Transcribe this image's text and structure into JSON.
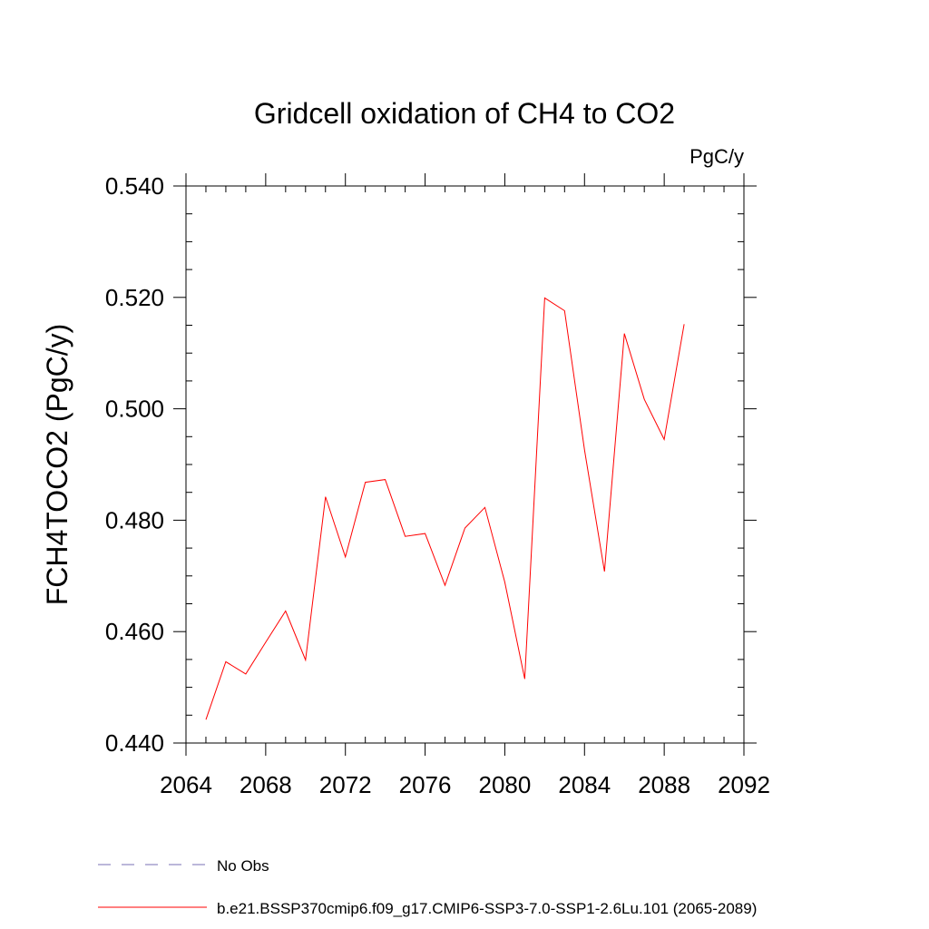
{
  "chart_data": {
    "type": "line",
    "title": "Gridcell oxidation of CH4 to CO2",
    "units_label": "PgC/y",
    "ylabel": "FCH4TOCO2  (PgC/y)",
    "xlabel": "",
    "xlim": [
      2064,
      2092
    ],
    "ylim": [
      0.44,
      0.54
    ],
    "x_ticks": [
      "2064",
      "2068",
      "2072",
      "2076",
      "2080",
      "2084",
      "2088",
      "2092"
    ],
    "y_ticks": [
      "0.440",
      "0.460",
      "0.480",
      "0.500",
      "0.520",
      "0.540"
    ],
    "series": [
      {
        "name": "b.e21.BSSP370cmip6.f09_g17.CMIP6-SSP3-7.0-SSP1-2.6Lu.101 (2065-2089)",
        "color": "#ff0000",
        "x": [
          2065,
          2066,
          2067,
          2068,
          2069,
          2070,
          2071,
          2072,
          2073,
          2074,
          2075,
          2076,
          2077,
          2078,
          2079,
          2080,
          2081,
          2082,
          2083,
          2084,
          2085,
          2086,
          2087,
          2088,
          2089
        ],
        "values": [
          0.4442,
          0.4546,
          0.4524,
          0.4581,
          0.4637,
          0.4549,
          0.4842,
          0.4734,
          0.4868,
          0.4873,
          0.4771,
          0.4776,
          0.4683,
          0.4786,
          0.4823,
          0.4689,
          0.4515,
          0.5199,
          0.5176,
          0.4926,
          0.4708,
          0.5135,
          0.5017,
          0.4945,
          0.5152
        ]
      }
    ],
    "legend": [
      {
        "label": "No Obs",
        "style": "dashed",
        "color": "#7a6fb5"
      },
      {
        "label": "b.e21.BSSP370cmip6.f09_g17.CMIP6-SSP3-7.0-SSP1-2.6Lu.101 (2065-2089)",
        "style": "solid",
        "color": "#ff0000"
      }
    ]
  }
}
